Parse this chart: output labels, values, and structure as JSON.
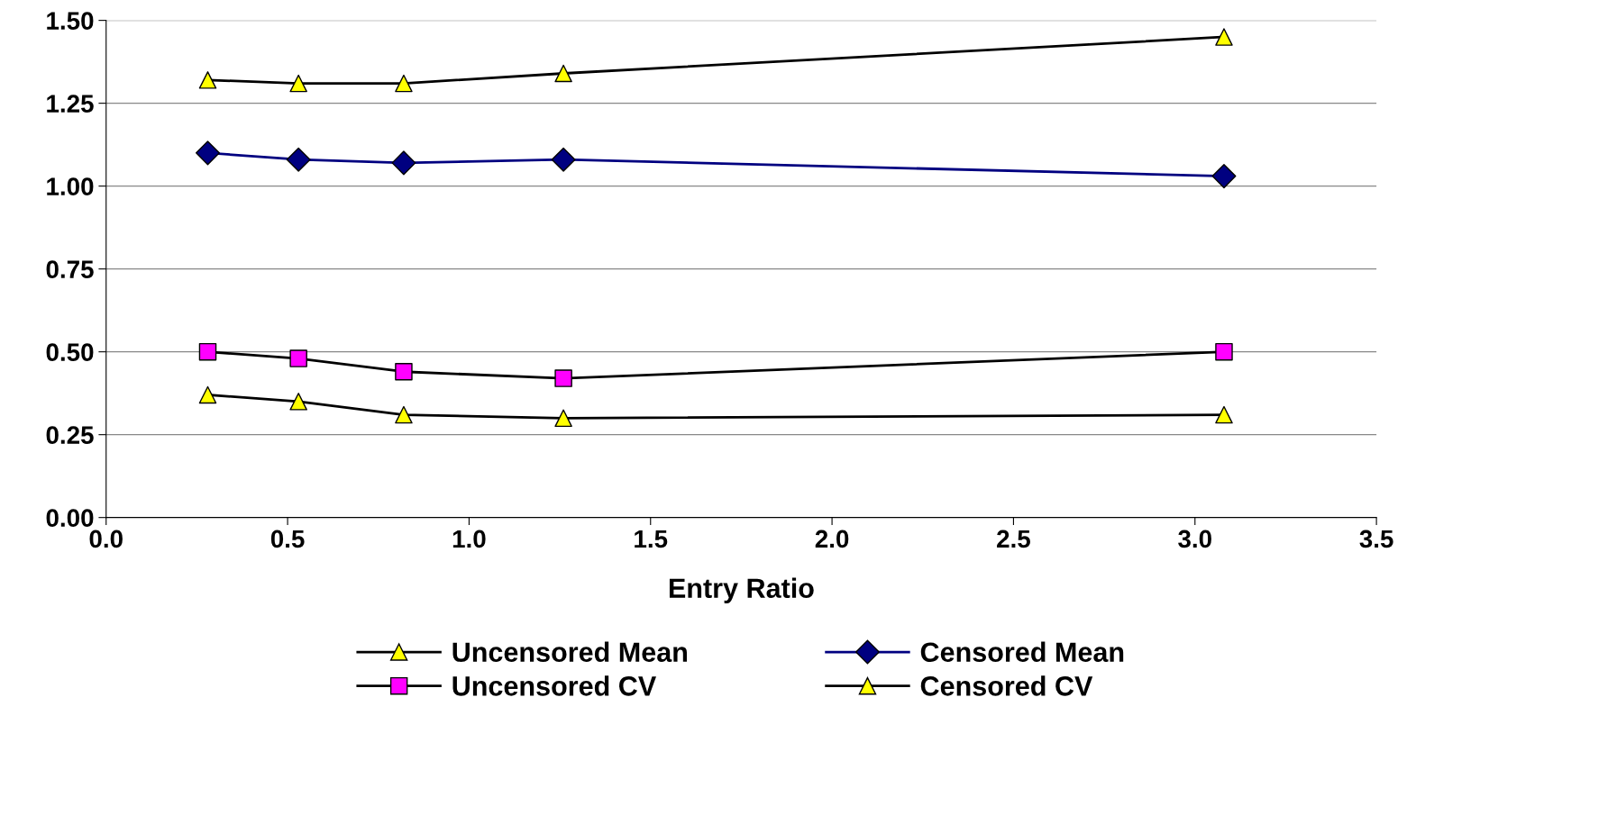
{
  "chart_data": {
    "type": "line",
    "xlabel": "Entry Ratio",
    "xlim": [
      0,
      3.5
    ],
    "xticks": [
      {
        "value": 0,
        "label": "0.0"
      },
      {
        "value": 0.5,
        "label": "0.5"
      },
      {
        "value": 1,
        "label": "1.0"
      },
      {
        "value": 1.5,
        "label": "1.5"
      },
      {
        "value": 2,
        "label": "2.0"
      },
      {
        "value": 2.5,
        "label": "2.5"
      },
      {
        "value": 3,
        "label": "3.0"
      },
      {
        "value": 3.5,
        "label": "3.5"
      }
    ],
    "ylim": [
      0,
      1.5
    ],
    "yticks": [
      {
        "value": 0,
        "label": "0.00"
      },
      {
        "value": 0.25,
        "label": "0.25"
      },
      {
        "value": 0.5,
        "label": "0.50"
      },
      {
        "value": 0.75,
        "label": "0.75"
      },
      {
        "value": 1,
        "label": "1.00"
      },
      {
        "value": 1.25,
        "label": "1.25"
      },
      {
        "value": 1.5,
        "label": "1.50"
      }
    ],
    "x": [
      0.28,
      0.53,
      0.82,
      1.26,
      3.08
    ],
    "grid": "y",
    "legend": "bottom",
    "line_style": "solid",
    "series": [
      {
        "name": "Uncensored Mean",
        "color": "#000000",
        "marker": "triangle",
        "colors": [
          "#ffff00",
          "#ffff00",
          "#ffff00",
          "#ffff00",
          "#ffff00"
        ],
        "values": [
          1.32,
          1.31,
          1.31,
          1.34,
          1.45
        ]
      },
      {
        "name": "Censored Mean",
        "color": "#000080",
        "marker": "diamond",
        "colors": [
          "#000080",
          "#000080",
          "#000080",
          "#000080",
          "#000080"
        ],
        "values": [
          1.1,
          1.08,
          1.07,
          1.08,
          1.03
        ]
      },
      {
        "name": "Uncensored CV",
        "color": "#000000",
        "marker": "square",
        "colors": [
          "#ff00ff",
          "#ff00ff",
          "#ff00ff",
          "#ff00ff",
          "#ff00ff"
        ],
        "values": [
          0.5,
          0.48,
          0.44,
          0.42,
          0.5
        ]
      },
      {
        "name": "Censored CV",
        "color": "#000000",
        "marker": "triangle",
        "colors": [
          "#ffff00",
          "#ffff00",
          "#ffff00",
          "#ffff00",
          "#ffff00"
        ],
        "values": [
          0.37,
          0.35,
          0.31,
          0.3,
          0.31
        ]
      }
    ]
  }
}
